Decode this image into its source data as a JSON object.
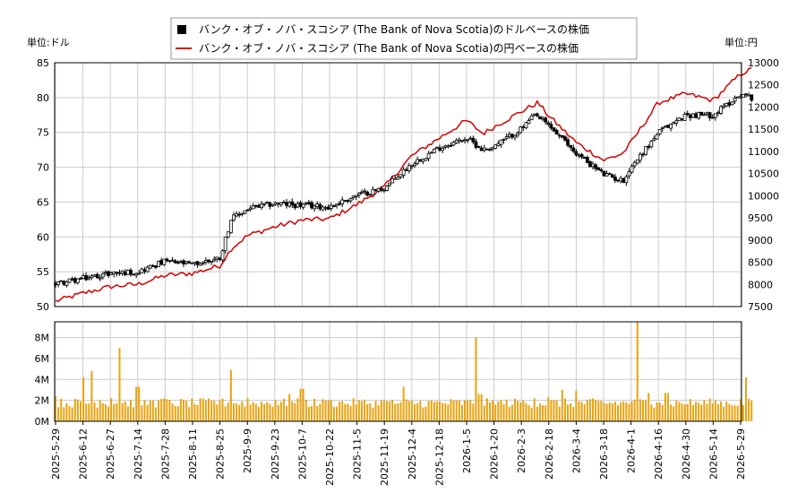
{
  "chart_data": [
    {
      "type": "candlestick+line",
      "legend": {
        "usd_series": "バンク・オブ・ノバ・スコシア (The Bank of Nova Scotia)のドルベースの株価",
        "jpy_series": "バンク・オブ・ノバ・スコシア (The Bank of Nova Scotia)の円ベースの株価",
        "placement": "top-center"
      },
      "left_unit_label": "単位:ドル",
      "right_unit_label": "単位:円",
      "y_left_ticks": [
        "85",
        "80",
        "75",
        "70",
        "65",
        "60",
        "55",
        "50"
      ],
      "y_right_ticks": [
        "13000",
        "12500",
        "12000",
        "11500",
        "11000",
        "10500",
        "10000",
        "9500",
        "9000",
        "8500",
        "8000",
        "7500"
      ],
      "ylim_left": [
        50,
        85
      ],
      "ylim_right": [
        7500,
        13000
      ],
      "grid": true,
      "x_ticks": [
        "2025-5-29",
        "2025-6-12",
        "2025-6-27",
        "2025-7-14",
        "2025-7-28",
        "2025-8-11",
        "2025-8-25",
        "2025-9-9",
        "2025-9-23",
        "2025-10-7",
        "2025-10-22",
        "2025-11-5",
        "2025-11-19",
        "2025-12-4",
        "2025-12-18",
        "2026-1-5",
        "2026-1-20",
        "2026-2-3",
        "2026-2-18",
        "2026-3-4",
        "2026-3-18",
        "2026-4-1",
        "2026-4-16",
        "2026-4-30",
        "2026-5-14",
        "2026-5-29"
      ],
      "usd_close_keypoints": [
        [
          0,
          53.3
        ],
        [
          1,
          54.0
        ],
        [
          2,
          54.8
        ],
        [
          3,
          55.0
        ],
        [
          4,
          56.5
        ],
        [
          5,
          56.0
        ],
        [
          6,
          57.0
        ],
        [
          6.4,
          62.5
        ],
        [
          7,
          64.0
        ],
        [
          8,
          64.8
        ],
        [
          9,
          64.5
        ],
        [
          10,
          64.3
        ],
        [
          11,
          66.0
        ],
        [
          12,
          67.0
        ],
        [
          13,
          70.5
        ],
        [
          14,
          72.8
        ],
        [
          15,
          74.2
        ],
        [
          15.6,
          72.5
        ],
        [
          16,
          73.0
        ],
        [
          17,
          75.5
        ],
        [
          17.5,
          77.5
        ],
        [
          18,
          76.0
        ],
        [
          19,
          72.0
        ],
        [
          20,
          69.0
        ],
        [
          20.7,
          68.0
        ],
        [
          21,
          70.0
        ],
        [
          22,
          75.0
        ],
        [
          23,
          77.5
        ],
        [
          24,
          77.5
        ],
        [
          25,
          80.5
        ],
        [
          25.4,
          80.0
        ]
      ],
      "jpy_close_keypoints": [
        [
          0,
          7620
        ],
        [
          1,
          7800
        ],
        [
          2,
          7950
        ],
        [
          3,
          8000
        ],
        [
          4,
          8200
        ],
        [
          5,
          8250
        ],
        [
          6,
          8420
        ],
        [
          6.4,
          8800
        ],
        [
          7,
          9100
        ],
        [
          8,
          9300
        ],
        [
          9,
          9450
        ],
        [
          10,
          9480
        ],
        [
          11,
          9800
        ],
        [
          12,
          10200
        ],
        [
          13,
          10900
        ],
        [
          14,
          11300
        ],
        [
          15,
          11700
        ],
        [
          15.6,
          11400
        ],
        [
          16,
          11550
        ],
        [
          17,
          11900
        ],
        [
          17.6,
          12100
        ],
        [
          18,
          11800
        ],
        [
          19,
          11200
        ],
        [
          20,
          10800
        ],
        [
          20.7,
          10950
        ],
        [
          21,
          11200
        ],
        [
          22,
          12100
        ],
        [
          23,
          12300
        ],
        [
          24,
          12150
        ],
        [
          25,
          12750
        ],
        [
          25.4,
          12850
        ]
      ],
      "series_colors": {
        "usd": "#000000",
        "jpy": "#d40000"
      }
    },
    {
      "type": "bar",
      "y_ticks": [
        "8M",
        "6M",
        "4M",
        "2M",
        "0M"
      ],
      "ylim": [
        0,
        9500000
      ],
      "bar_color": "#e8a30f",
      "volume_keypoints": [
        [
          0,
          2.4
        ],
        [
          0.5,
          1.4
        ],
        [
          1,
          4.2
        ],
        [
          1.3,
          4.8
        ],
        [
          1.6,
          2.0
        ],
        [
          2,
          2.2
        ],
        [
          2.3,
          7.0
        ],
        [
          3,
          3.3
        ],
        [
          3.5,
          2.0
        ],
        [
          4,
          2.2
        ],
        [
          5,
          1.5
        ],
        [
          6,
          2.0
        ],
        [
          6.4,
          4.9
        ],
        [
          7,
          2.2
        ],
        [
          8,
          2.0
        ],
        [
          8.5,
          2.6
        ],
        [
          9,
          3.1
        ],
        [
          10,
          2.0
        ],
        [
          11,
          1.6
        ],
        [
          12,
          2.0
        ],
        [
          12.7,
          3.3
        ],
        [
          13,
          1.5
        ],
        [
          14,
          1.7
        ],
        [
          15,
          1.4
        ],
        [
          15.35,
          8.0
        ],
        [
          15.5,
          2.6
        ],
        [
          16,
          1.6
        ],
        [
          17,
          1.8
        ],
        [
          17.5,
          2.2
        ],
        [
          18,
          2.3
        ],
        [
          18.5,
          3.0
        ],
        [
          19,
          2.9
        ],
        [
          20,
          1.6
        ],
        [
          21,
          1.9
        ],
        [
          21.2,
          9.5
        ],
        [
          21.6,
          2.7
        ],
        [
          22,
          1.8
        ],
        [
          22.3,
          2.7
        ],
        [
          23,
          1.6
        ],
        [
          24,
          1.7
        ],
        [
          25,
          2.1
        ],
        [
          25.2,
          4.2
        ],
        [
          25.4,
          2.0
        ]
      ]
    }
  ]
}
